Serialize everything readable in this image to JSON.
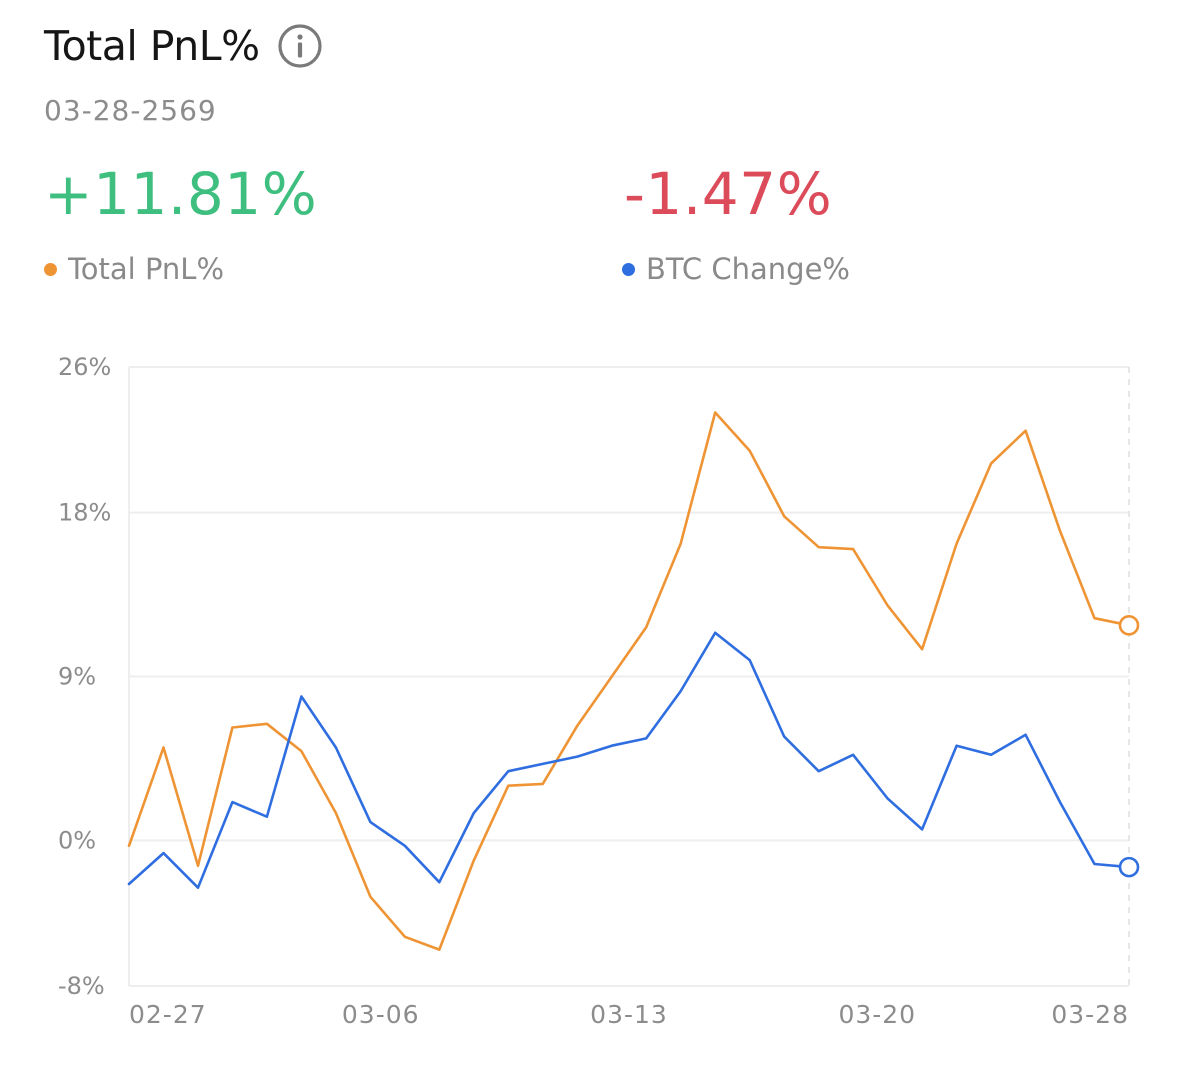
{
  "header": {
    "title": "Total PnL%",
    "info_icon": "info-circle-icon",
    "date": "03-28-2569"
  },
  "summary": {
    "pnl_value": "+11.81%",
    "btc_value": "-1.47%",
    "pnl_label": "Total PnL%",
    "btc_label": "BTC Change%"
  },
  "colors": {
    "pnl": "#ef9434",
    "btc": "#2f6ee0",
    "positive": "#3fbf7f",
    "negative": "#dc4b5a",
    "grid": "#eeeeee",
    "axis_text": "#8c8c8c"
  },
  "chart_data": {
    "type": "line",
    "x": [
      "02-25",
      "02-26",
      "02-27",
      "02-28",
      "03-01",
      "03-02",
      "03-03",
      "03-04",
      "03-05",
      "03-06",
      "03-07",
      "03-08",
      "03-09",
      "03-10",
      "03-11",
      "03-12",
      "03-13",
      "03-14",
      "03-15",
      "03-16",
      "03-17",
      "03-18",
      "03-19",
      "03-20",
      "03-21",
      "03-22",
      "03-23",
      "03-24",
      "03-25",
      "03-26"
    ],
    "x_tick_labels": [
      "02-27",
      "03-06",
      "03-13",
      "03-20",
      "03-28"
    ],
    "x_tick_indices": [
      1.2,
      7.3,
      14.5,
      21.7,
      27.7
    ],
    "y_ticks": [
      26,
      18,
      9,
      0,
      -8
    ],
    "y_tick_labels": [
      "26%",
      "18%",
      "9%",
      "0%",
      "-8%"
    ],
    "ylim": [
      -8,
      26
    ],
    "series": [
      {
        "name": "Total PnL%",
        "color": "#ef9434",
        "values": [
          -0.3,
          5.1,
          -1.4,
          6.2,
          6.4,
          4.9,
          1.5,
          -3.1,
          -5.3,
          -6.0,
          -1.1,
          3.0,
          3.1,
          6.3,
          9.0,
          11.7,
          16.3,
          23.5,
          21.4,
          17.8,
          16.1,
          16.0,
          12.9,
          10.5,
          16.3,
          20.7,
          22.5,
          17.0,
          12.2,
          11.81
        ]
      },
      {
        "name": "BTC Change%",
        "color": "#2f6ee0",
        "values": [
          -2.4,
          -0.7,
          -2.6,
          2.1,
          1.3,
          7.9,
          5.1,
          1.0,
          -0.3,
          -2.3,
          1.5,
          3.8,
          4.2,
          4.6,
          5.2,
          5.6,
          8.2,
          11.4,
          9.9,
          5.7,
          3.8,
          4.7,
          2.3,
          0.6,
          5.2,
          4.7,
          5.8,
          2.1,
          -1.3,
          -1.47
        ]
      }
    ],
    "grid": true,
    "legend": "top-left"
  }
}
